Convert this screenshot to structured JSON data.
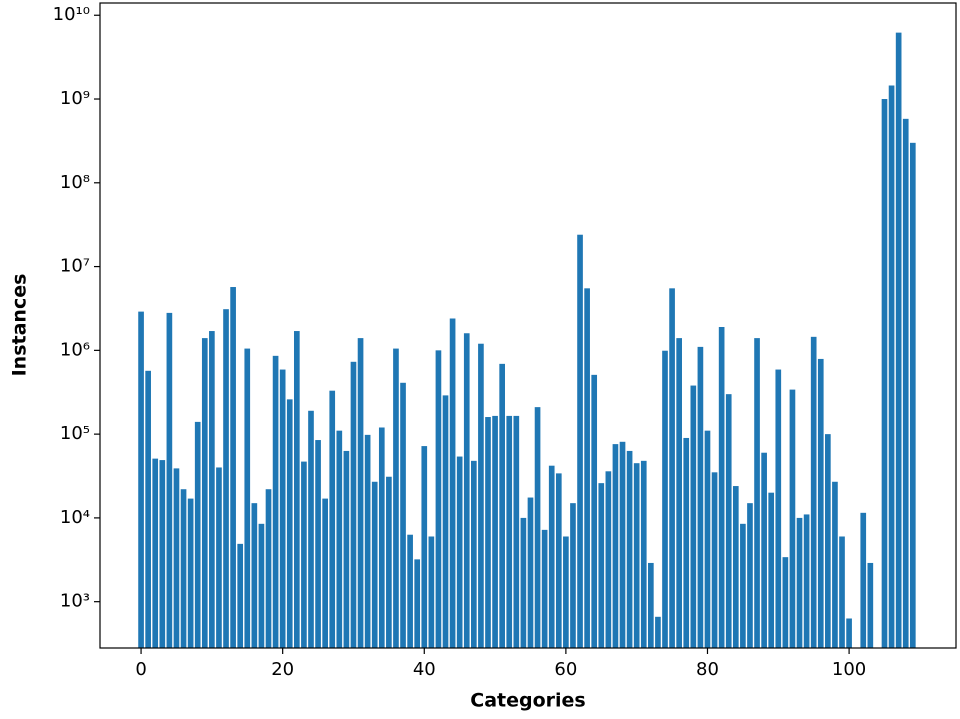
{
  "chart_data": {
    "type": "bar",
    "x_label": "Categories",
    "y_label": "Instances",
    "color": "#1f77b4",
    "log_y": true,
    "x": [
      0,
      1,
      2,
      3,
      4,
      5,
      6,
      7,
      8,
      9,
      10,
      11,
      12,
      13,
      14,
      15,
      16,
      17,
      18,
      19,
      20,
      21,
      22,
      23,
      24,
      25,
      26,
      27,
      28,
      29,
      30,
      31,
      32,
      33,
      34,
      35,
      36,
      37,
      38,
      39,
      40,
      41,
      42,
      43,
      44,
      45,
      46,
      47,
      48,
      49,
      50,
      51,
      52,
      53,
      54,
      55,
      56,
      57,
      58,
      59,
      60,
      61,
      62,
      63,
      64,
      65,
      66,
      67,
      68,
      69,
      70,
      71,
      72,
      73,
      74,
      75,
      76,
      77,
      78,
      79,
      80,
      81,
      82,
      83,
      84,
      85,
      86,
      87,
      88,
      89,
      90,
      91,
      92,
      93,
      94,
      95,
      96,
      97,
      98,
      99,
      100,
      101,
      102,
      103,
      104,
      105,
      106,
      107,
      108,
      109
    ],
    "values": [
      2900000,
      570000,
      51000,
      49000,
      2800000,
      39000,
      22000,
      17000,
      140000,
      1400000,
      1700000,
      40000,
      3100000,
      5700000,
      4900,
      1050000,
      15000,
      8500,
      22000,
      860000,
      590000,
      260000,
      1700000,
      47000,
      190000,
      85000,
      17000,
      330000,
      110000,
      63000,
      730000,
      1400000,
      98000,
      27000,
      120000,
      31000,
      1050000,
      410000,
      6300,
      3200,
      72000,
      6000,
      1000000,
      290000,
      2400000,
      54000,
      1600000,
      48000,
      1200000,
      160000,
      165000,
      690000,
      165000,
      165000,
      10000,
      17500,
      210000,
      7200,
      42000,
      34000,
      6000,
      15000,
      24000000,
      5500000,
      510000,
      26000,
      36000,
      76000,
      81000,
      63000,
      45000,
      48000,
      2900,
      660,
      990000,
      5500000,
      1400000,
      90000,
      380000,
      1100000,
      110000,
      35000,
      1900000,
      300000,
      24000,
      8500,
      15000,
      1400000,
      60000,
      20000,
      590000,
      3400,
      340000,
      10000,
      11000,
      1450000,
      790000,
      100000,
      27000,
      6000,
      630,
      null,
      11500,
      2900,
      null,
      1000000000,
      1450000000,
      6200000000,
      580000000,
      300000000
    ],
    "xlim": [
      -5.8,
      115.1
    ],
    "xticks": [
      0,
      20,
      40,
      60,
      80,
      100
    ],
    "ylim": [
      280,
      14000000000
    ],
    "yticks": [
      {
        "value": 1000,
        "label": "10³"
      },
      {
        "value": 10000,
        "label": "10⁴"
      },
      {
        "value": 100000,
        "label": "10⁵"
      },
      {
        "value": 1000000,
        "label": "10⁶"
      },
      {
        "value": 10000000,
        "label": "10⁷"
      },
      {
        "value": 100000000,
        "label": "10⁸"
      },
      {
        "value": 1000000000,
        "label": "10⁹"
      },
      {
        "value": 10000000000,
        "label": "10¹⁰"
      }
    ]
  }
}
